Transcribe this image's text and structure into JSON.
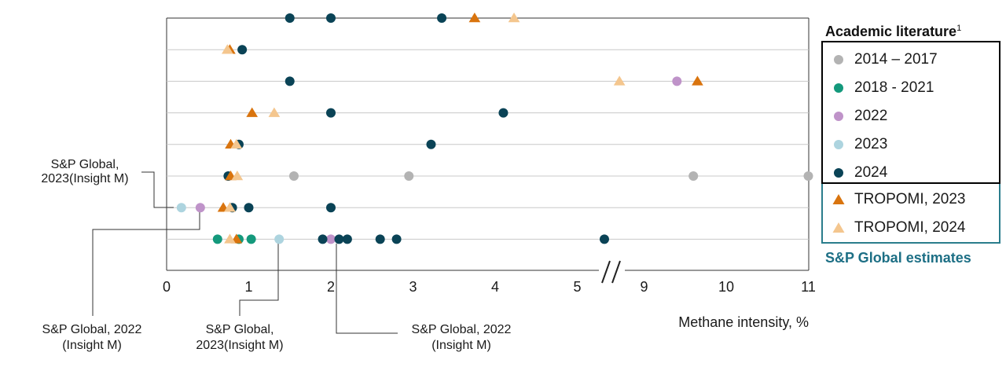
{
  "chart_data": {
    "type": "scatter",
    "title": "",
    "xlabel": "Methane intensity, %",
    "ylabel": "",
    "x_ticks": [
      "0",
      "1",
      "2",
      "3",
      "4",
      "5",
      "9",
      "10",
      "11"
    ],
    "x_axis_break": {
      "between": [
        5,
        9
      ]
    },
    "grid": "horizontal",
    "legend_position": "right",
    "legend_title": "Academic literature",
    "legend_title_sup": "1",
    "legend_footer": "S&P Global estimates",
    "rows": 8,
    "series": [
      {
        "name": "2014 – 2017",
        "marker": "circle",
        "color": "#b3b3b3",
        "points": [
          {
            "row": 6,
            "x": 1.55
          },
          {
            "row": 6,
            "x": 2.95
          },
          {
            "row": 6,
            "x": 9.6
          },
          {
            "row": 6,
            "x": 11.0
          }
        ]
      },
      {
        "name": "2018 - 2021",
        "marker": "circle",
        "color": "#14997c",
        "points": [
          {
            "row": 8,
            "x": 0.62
          },
          {
            "row": 8,
            "x": 0.88
          },
          {
            "row": 8,
            "x": 1.03
          }
        ]
      },
      {
        "name": "2022",
        "marker": "circle",
        "color": "#bf93c9",
        "points": [
          {
            "row": 3,
            "x": 9.4
          },
          {
            "row": 7,
            "x": 0.41
          },
          {
            "row": 8,
            "x": 2.0
          }
        ]
      },
      {
        "name": "2023",
        "marker": "circle",
        "color": "#add4df",
        "points": [
          {
            "row": 7,
            "x": 0.18
          },
          {
            "row": 8,
            "x": 1.37
          }
        ]
      },
      {
        "name": "2024",
        "marker": "circle",
        "color": "#0a4356",
        "points": [
          {
            "row": 1,
            "x": 1.5
          },
          {
            "row": 1,
            "x": 2.0
          },
          {
            "row": 1,
            "x": 3.35
          },
          {
            "row": 2,
            "x": 0.92
          },
          {
            "row": 3,
            "x": 1.5
          },
          {
            "row": 4,
            "x": 2.0
          },
          {
            "row": 4,
            "x": 4.1
          },
          {
            "row": 5,
            "x": 0.88
          },
          {
            "row": 5,
            "x": 3.22
          },
          {
            "row": 6,
            "x": 0.75
          },
          {
            "row": 7,
            "x": 0.8
          },
          {
            "row": 7,
            "x": 1.0
          },
          {
            "row": 7,
            "x": 2.0
          },
          {
            "row": 8,
            "x": 1.9
          },
          {
            "row": 8,
            "x": 2.1
          },
          {
            "row": 8,
            "x": 2.2
          },
          {
            "row": 8,
            "x": 2.6
          },
          {
            "row": 8,
            "x": 2.8
          },
          {
            "row": 8,
            "x": 5.33
          }
        ]
      },
      {
        "name": "TROPOMI, 2023",
        "marker": "triangle",
        "color": "#d9740e",
        "points": [
          {
            "row": 1,
            "x": 3.75
          },
          {
            "row": 2,
            "x": 0.77
          },
          {
            "row": 3,
            "x": 9.65
          },
          {
            "row": 4,
            "x": 1.04
          },
          {
            "row": 5,
            "x": 0.78
          },
          {
            "row": 6,
            "x": 0.78
          },
          {
            "row": 7,
            "x": 0.69
          },
          {
            "row": 8,
            "x": 0.85
          }
        ]
      },
      {
        "name": "TROPOMI, 2024",
        "marker": "triangle",
        "color": "#f4c68e",
        "points": [
          {
            "row": 1,
            "x": 4.23
          },
          {
            "row": 2,
            "x": 0.74
          },
          {
            "row": 3,
            "x": 8.7
          },
          {
            "row": 4,
            "x": 1.31
          },
          {
            "row": 5,
            "x": 0.85
          },
          {
            "row": 6,
            "x": 0.86
          },
          {
            "row": 7,
            "x": 0.77
          },
          {
            "row": 8,
            "x": 0.77
          }
        ]
      }
    ],
    "annotations": [
      {
        "lines": [
          "S&P Global,",
          "2023(Insight M)"
        ],
        "row": 7,
        "x": 0.18
      },
      {
        "lines": [
          "S&P Global, 2022",
          "(Insight M)"
        ],
        "row": 7,
        "x": 0.41
      },
      {
        "lines": [
          "S&P Global,",
          "2023(Insight M)"
        ],
        "row": 8,
        "x": 1.37
      },
      {
        "lines": [
          "S&P Global, 2022",
          "(Insight M)"
        ],
        "row": 8,
        "x": 2.0
      }
    ]
  }
}
